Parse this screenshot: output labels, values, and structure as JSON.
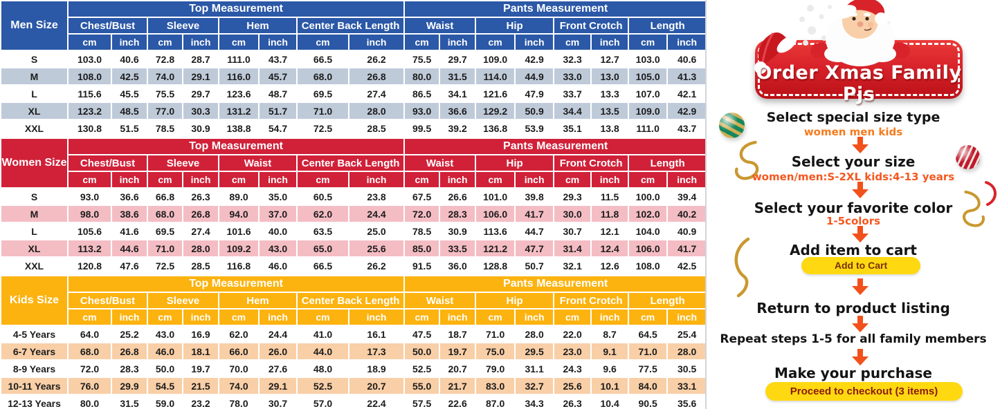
{
  "chart_data": [
    {
      "type": "table",
      "title": "Men Size",
      "top_section": "Top Measurement",
      "pants_section": "Pants Measurement",
      "top_groups": [
        "Chest/Bust",
        "Sleeve",
        "Hem",
        "Center Back Length"
      ],
      "pants_groups": [
        "Waist",
        "Hip",
        "Front Crotch",
        "Length"
      ],
      "units": [
        "cm",
        "inch"
      ],
      "colors": {
        "header": "#2b58a7",
        "alt_row": "#bfcad9"
      },
      "rows": [
        {
          "size": "S",
          "values": [
            "103.0",
            "40.6",
            "72.8",
            "28.7",
            "111.0",
            "43.7",
            "66.5",
            "26.2",
            "75.5",
            "29.7",
            "109.0",
            "42.9",
            "32.3",
            "12.7",
            "103.0",
            "40.6"
          ]
        },
        {
          "size": "M",
          "values": [
            "108.0",
            "42.5",
            "74.0",
            "29.1",
            "116.0",
            "45.7",
            "68.0",
            "26.8",
            "80.0",
            "31.5",
            "114.0",
            "44.9",
            "33.0",
            "13.0",
            "105.0",
            "41.3"
          ]
        },
        {
          "size": "L",
          "values": [
            "115.6",
            "45.5",
            "75.5",
            "29.7",
            "123.6",
            "48.7",
            "69.5",
            "27.4",
            "86.5",
            "34.1",
            "121.6",
            "47.9",
            "33.7",
            "13.3",
            "107.0",
            "42.1"
          ]
        },
        {
          "size": "XL",
          "values": [
            "123.2",
            "48.5",
            "77.0",
            "30.3",
            "131.2",
            "51.7",
            "71.0",
            "28.0",
            "93.0",
            "36.6",
            "129.2",
            "50.9",
            "34.4",
            "13.5",
            "109.0",
            "42.9"
          ]
        },
        {
          "size": "XXL",
          "values": [
            "130.8",
            "51.5",
            "78.5",
            "30.9",
            "138.8",
            "54.7",
            "72.5",
            "28.5",
            "99.5",
            "39.2",
            "136.8",
            "53.9",
            "35.1",
            "13.8",
            "111.0",
            "43.7"
          ]
        }
      ]
    },
    {
      "type": "table",
      "title": "Women Size",
      "top_section": "Top Measurement",
      "pants_section": "Pants Measurement",
      "top_groups": [
        "Chest/Bust",
        "Sleeve",
        "Waist",
        "Center Back Length"
      ],
      "pants_groups": [
        "Waist",
        "Hip",
        "Front Crotch",
        "Length"
      ],
      "units": [
        "cm",
        "inch"
      ],
      "colors": {
        "header": "#d02139",
        "alt_row": "#f4bdc4"
      },
      "rows": [
        {
          "size": "S",
          "values": [
            "93.0",
            "36.6",
            "66.8",
            "26.3",
            "89.0",
            "35.0",
            "60.5",
            "23.8",
            "67.5",
            "26.6",
            "101.0",
            "39.8",
            "29.3",
            "11.5",
            "100.0",
            "39.4"
          ]
        },
        {
          "size": "M",
          "values": [
            "98.0",
            "38.6",
            "68.0",
            "26.8",
            "94.0",
            "37.0",
            "62.0",
            "24.4",
            "72.0",
            "28.3",
            "106.0",
            "41.7",
            "30.0",
            "11.8",
            "102.0",
            "40.2"
          ]
        },
        {
          "size": "L",
          "values": [
            "105.6",
            "41.6",
            "69.5",
            "27.4",
            "101.6",
            "40.0",
            "63.5",
            "25.0",
            "78.5",
            "30.9",
            "113.6",
            "44.7",
            "30.7",
            "12.1",
            "104.0",
            "40.9"
          ]
        },
        {
          "size": "XL",
          "values": [
            "113.2",
            "44.6",
            "71.0",
            "28.0",
            "109.2",
            "43.0",
            "65.0",
            "25.6",
            "85.0",
            "33.5",
            "121.2",
            "47.7",
            "31.4",
            "12.4",
            "106.0",
            "41.7"
          ]
        },
        {
          "size": "XXL",
          "values": [
            "120.8",
            "47.6",
            "72.5",
            "28.5",
            "116.8",
            "46.0",
            "66.5",
            "26.2",
            "91.5",
            "36.0",
            "128.8",
            "50.7",
            "32.1",
            "12.6",
            "108.0",
            "42.5"
          ]
        }
      ]
    },
    {
      "type": "table",
      "title": "Kids Size",
      "top_section": "Top Measurement",
      "pants_section": "Pants Measurement",
      "top_groups": [
        "Chest/Bust",
        "Sleeve",
        "Hem",
        "Center Back Length"
      ],
      "pants_groups": [
        "Waist",
        "Hip",
        "Front Crotch",
        "Length"
      ],
      "units": [
        "cm",
        "inch"
      ],
      "colors": {
        "header": "#fcb30f",
        "alt_row": "#f9cfa7"
      },
      "rows": [
        {
          "size": "4-5 Years",
          "values": [
            "64.0",
            "25.2",
            "43.0",
            "16.9",
            "62.0",
            "24.4",
            "41.0",
            "16.1",
            "47.5",
            "18.7",
            "71.0",
            "28.0",
            "22.0",
            "8.7",
            "64.5",
            "25.4"
          ]
        },
        {
          "size": "6-7 Years",
          "values": [
            "68.0",
            "26.8",
            "46.0",
            "18.1",
            "66.0",
            "26.0",
            "44.0",
            "17.3",
            "50.0",
            "19.7",
            "75.0",
            "29.5",
            "23.0",
            "9.1",
            "71.0",
            "28.0"
          ]
        },
        {
          "size": "8-9 Years",
          "values": [
            "72.0",
            "28.3",
            "50.0",
            "19.7",
            "70.0",
            "27.6",
            "48.0",
            "18.9",
            "52.5",
            "20.7",
            "79.0",
            "31.1",
            "24.3",
            "9.6",
            "77.5",
            "30.5"
          ]
        },
        {
          "size": "10-11 Years",
          "values": [
            "76.0",
            "29.9",
            "54.5",
            "21.5",
            "74.0",
            "29.1",
            "52.5",
            "20.7",
            "55.0",
            "21.7",
            "83.0",
            "32.7",
            "25.6",
            "10.1",
            "84.0",
            "33.1"
          ]
        },
        {
          "size": "12-13 Years",
          "values": [
            "80.0",
            "31.5",
            "59.0",
            "23.2",
            "78.0",
            "30.7",
            "57.0",
            "22.4",
            "57.5",
            "22.6",
            "87.0",
            "34.3",
            "26.3",
            "10.4",
            "90.5",
            "35.6"
          ]
        }
      ]
    }
  ],
  "promo": {
    "banner_title": "Order Xmas Family Pjs",
    "steps": [
      {
        "title": "Select special size type",
        "subtitle": "women men kids"
      },
      {
        "title": "Select your size",
        "subtitle": "women/men:S-2XL kids:4-13 years"
      },
      {
        "title": "Select your favorite color",
        "subtitle": "1-5colors"
      },
      {
        "title": "Add item to cart",
        "button": "Add to Cart"
      },
      {
        "title": "Return to product listing"
      },
      {
        "title": "Repeat steps 1-5 for all family members"
      },
      {
        "title": "Make your purchase",
        "button": "Proceed to checkout (3 items)"
      }
    ],
    "colors": {
      "arrow": "#f2511b",
      "subtitle_text": "#f4581f",
      "button_bg": "#fed912",
      "button_text": "#7a2e04",
      "banner_red": "#d8232b"
    }
  }
}
